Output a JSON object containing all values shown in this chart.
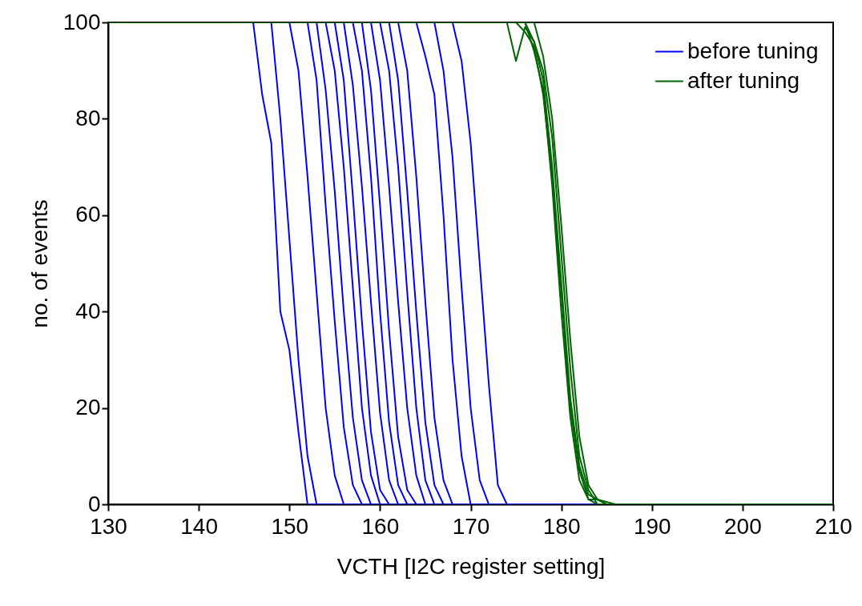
{
  "chart_data": {
    "type": "line",
    "xlabel": "VCTH [I2C register setting]",
    "ylabel": "no. of events",
    "xlim": [
      130,
      210
    ],
    "xticks": [
      130,
      140,
      150,
      160,
      170,
      180,
      190,
      200,
      210
    ],
    "ylim": [
      0,
      100
    ],
    "yticks": [
      0,
      20,
      40,
      60,
      80,
      100
    ],
    "grid": false,
    "legend": "top right",
    "marker": "none",
    "line_style": "solid",
    "series": [
      {
        "name": "before tuning",
        "color": "#0000ff",
        "x": [
          130,
          146,
          147,
          148,
          149,
          150,
          151,
          152,
          210
        ],
        "values": [
          100,
          100,
          85,
          75,
          40,
          32,
          15,
          0,
          0
        ]
      },
      {
        "color": "#0000ff",
        "x": [
          130,
          148,
          149,
          150,
          151,
          152,
          153,
          210
        ],
        "values": [
          100,
          100,
          80,
          55,
          30,
          10,
          0,
          0
        ]
      },
      {
        "color": "#0000ff",
        "x": [
          130,
          150,
          151,
          152,
          153,
          154,
          155,
          156,
          210
        ],
        "values": [
          100,
          100,
          90,
          68,
          44,
          20,
          6,
          0,
          0
        ]
      },
      {
        "color": "#0000ff",
        "x": [
          130,
          152,
          153,
          154,
          155,
          156,
          157,
          158,
          210
        ],
        "values": [
          100,
          100,
          88,
          62,
          38,
          16,
          4,
          0,
          0
        ]
      },
      {
        "color": "#0000ff",
        "x": [
          130,
          153,
          154,
          155,
          156,
          157,
          158,
          159,
          210
        ],
        "values": [
          100,
          100,
          86,
          65,
          40,
          18,
          5,
          0,
          0
        ]
      },
      {
        "color": "#0000ff",
        "x": [
          130,
          154,
          155,
          156,
          157,
          158,
          159,
          160,
          210
        ],
        "values": [
          100,
          100,
          90,
          70,
          45,
          20,
          6,
          0,
          0
        ]
      },
      {
        "color": "#0000ff",
        "x": [
          130,
          155,
          156,
          157,
          158,
          159,
          160,
          161,
          210
        ],
        "values": [
          100,
          100,
          88,
          64,
          38,
          15,
          3,
          0,
          0
        ]
      },
      {
        "color": "#0000ff",
        "x": [
          130,
          156,
          157,
          158,
          159,
          160,
          161,
          162,
          210
        ],
        "values": [
          100,
          100,
          87,
          66,
          42,
          19,
          5,
          0,
          0
        ]
      },
      {
        "color": "#0000ff",
        "x": [
          130,
          157,
          158,
          159,
          160,
          161,
          162,
          163,
          210
        ],
        "values": [
          100,
          100,
          90,
          68,
          40,
          17,
          4,
          0,
          0
        ]
      },
      {
        "color": "#0000ff",
        "x": [
          130,
          158,
          159,
          160,
          161,
          162,
          163,
          164,
          210
        ],
        "values": [
          100,
          100,
          86,
          62,
          36,
          14,
          3,
          0,
          0
        ]
      },
      {
        "color": "#0000ff",
        "x": [
          130,
          159,
          160,
          161,
          162,
          163,
          164,
          165,
          210
        ],
        "values": [
          100,
          100,
          88,
          66,
          42,
          20,
          6,
          0,
          0
        ]
      },
      {
        "color": "#0000ff",
        "x": [
          130,
          160,
          161,
          162,
          163,
          164,
          165,
          166,
          210
        ],
        "values": [
          100,
          100,
          90,
          70,
          44,
          20,
          5,
          0,
          0
        ]
      },
      {
        "color": "#0000ff",
        "x": [
          130,
          161,
          162,
          163,
          164,
          165,
          166,
          167,
          210
        ],
        "values": [
          100,
          100,
          88,
          65,
          40,
          17,
          4,
          0,
          0
        ]
      },
      {
        "color": "#0000ff",
        "x": [
          130,
          162,
          163,
          164,
          165,
          166,
          167,
          168,
          210
        ],
        "values": [
          100,
          100,
          90,
          68,
          42,
          18,
          5,
          0,
          0
        ]
      },
      {
        "color": "#0000ff",
        "x": [
          130,
          164,
          165,
          166,
          167,
          168,
          169,
          170,
          210
        ],
        "values": [
          100,
          100,
          93,
          85,
          60,
          30,
          10,
          0,
          0
        ]
      },
      {
        "color": "#0000ff",
        "x": [
          130,
          166,
          167,
          168,
          169,
          170,
          171,
          172,
          210
        ],
        "values": [
          100,
          100,
          90,
          72,
          45,
          20,
          5,
          0,
          0
        ]
      },
      {
        "color": "#0000ff",
        "x": [
          130,
          168,
          169,
          170,
          171,
          172,
          173,
          174,
          210
        ],
        "values": [
          100,
          100,
          92,
          75,
          50,
          25,
          4,
          0,
          0
        ]
      },
      {
        "name": "after tuning",
        "color": "#006400",
        "x": [
          130,
          175,
          176,
          177,
          178,
          179,
          180,
          181,
          182,
          183,
          184,
          210
        ],
        "values": [
          100,
          100,
          98,
          95,
          85,
          68,
          44,
          20,
          7,
          1,
          0,
          0
        ]
      },
      {
        "color": "#006400",
        "x": [
          130,
          174,
          175,
          176,
          177,
          178,
          179,
          180,
          181,
          182,
          183,
          185,
          210
        ],
        "values": [
          100,
          100,
          92,
          99,
          96,
          88,
          70,
          46,
          22,
          8,
          2,
          0,
          0
        ]
      },
      {
        "color": "#006400",
        "x": [
          130,
          176,
          177,
          178,
          179,
          180,
          181,
          182,
          183,
          184,
          210
        ],
        "values": [
          100,
          100,
          96,
          90,
          76,
          52,
          28,
          10,
          3,
          0,
          0
        ]
      },
      {
        "color": "#006400",
        "x": [
          130,
          176,
          177,
          178,
          179,
          180,
          181,
          182,
          183,
          184,
          186,
          210
        ],
        "values": [
          100,
          100,
          94,
          86,
          66,
          40,
          18,
          5,
          1,
          1,
          0,
          0
        ]
      },
      {
        "color": "#006400",
        "x": [
          130,
          177,
          178,
          179,
          180,
          181,
          182,
          183,
          184,
          185,
          210
        ],
        "values": [
          100,
          100,
          93,
          80,
          58,
          34,
          14,
          4,
          1,
          0,
          0
        ]
      }
    ]
  }
}
